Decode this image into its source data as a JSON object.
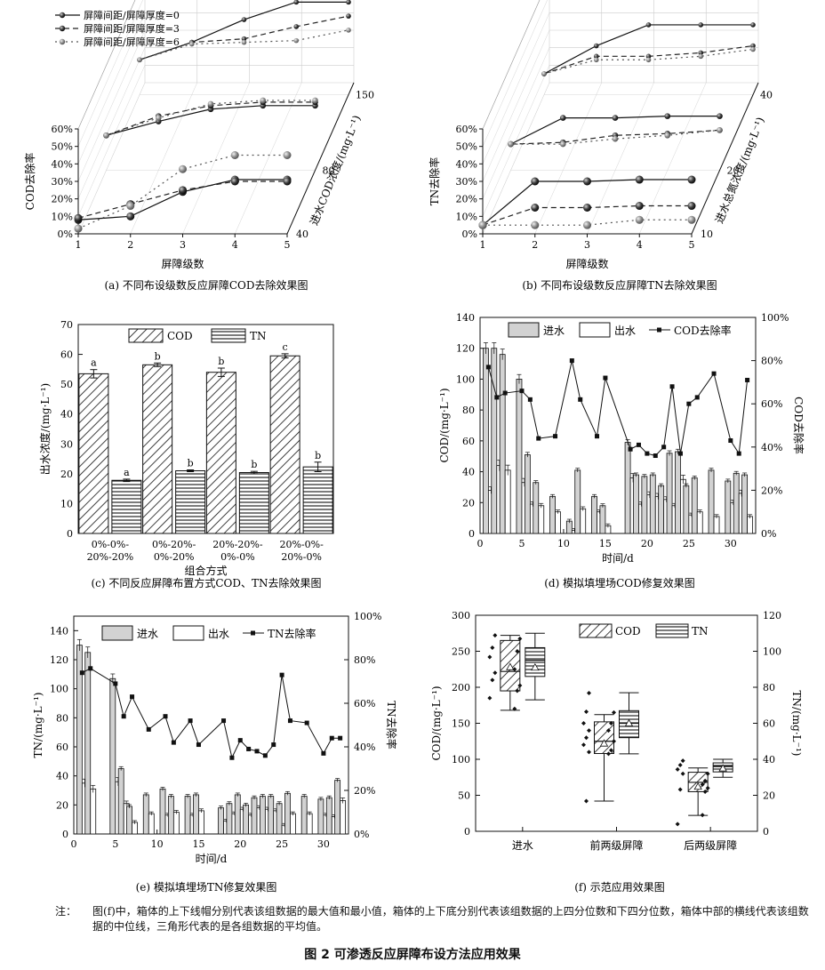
{
  "figure_title": "图 2   可渗透反应屏障布设方法应用效果",
  "note_label": "注：",
  "note_text": "图(f)中，箱体的上下线帽分别代表该组数据的最大值和最小值，箱体的上下底分别代表该组数据的上四分位数和下四分位数，箱体中部的横线代表该组数据的中位线，三角形代表的是各组数据的平均值。",
  "colors": {
    "influent": "#d2d2d2",
    "effluent": "#ffffff",
    "line": "#111111",
    "dash": "#222222",
    "dot": "#666666"
  },
  "chart_data": [
    {
      "id": "a",
      "type": "line3d",
      "caption": "(a) 不同布设级数反应屏障COD去除效果图",
      "xlabel": "屏障级数",
      "ylabel": "COD去除率",
      "zlabel": "进水COD浓度/(mg·L⁻¹)",
      "x": [
        1,
        2,
        3,
        4,
        5
      ],
      "z_ticks": [
        "40",
        "80",
        "150"
      ],
      "y_ticks": [
        "0%",
        "10%",
        "20%",
        "30%",
        "40%",
        "50%",
        "60%"
      ],
      "legend": [
        "屏障间距/屏障厚度=0",
        "屏障间距/屏障厚度=3",
        "屏障间距/屏障厚度=6"
      ],
      "series": [
        {
          "name": "屏障间距/屏障厚度=0",
          "conc": "40",
          "values": [
            8,
            10,
            24,
            31,
            31
          ]
        },
        {
          "name": "屏障间距/屏障厚度=3",
          "conc": "40",
          "values": [
            9,
            17,
            25,
            30,
            30
          ]
        },
        {
          "name": "屏障间距/屏障厚度=6",
          "conc": "40",
          "values": [
            3,
            16,
            37,
            45,
            45
          ]
        },
        {
          "name": "屏障间距/屏障厚度=0",
          "conc": "80",
          "values": [
            20,
            28,
            35,
            37,
            37
          ]
        },
        {
          "name": "屏障间距/屏障厚度=3",
          "conc": "80",
          "values": [
            20,
            31,
            37,
            39,
            39
          ]
        },
        {
          "name": "屏障间距/屏障厚度=6",
          "conc": "80",
          "values": [
            20,
            30,
            38,
            40,
            40
          ]
        },
        {
          "name": "屏障间距/屏障厚度=0",
          "conc": "150",
          "values": [
            20,
            30,
            43,
            53,
            53
          ]
        },
        {
          "name": "屏障间距/屏障厚度=3",
          "conc": "150",
          "values": [
            20,
            30,
            32,
            39,
            45
          ]
        },
        {
          "name": "屏障间距/屏障厚度=6",
          "conc": "150",
          "values": [
            20,
            29,
            30,
            31,
            37
          ]
        }
      ]
    },
    {
      "id": "b",
      "type": "line3d",
      "caption": "(b) 不同布设级数反应屏障TN去除效果图",
      "xlabel": "屏障级数",
      "ylabel": "TN去除率",
      "zlabel": "进水总氮浓度/(mg·L⁻¹)",
      "x": [
        1,
        2,
        3,
        4,
        5
      ],
      "z_ticks": [
        "10",
        "20",
        "40"
      ],
      "y_ticks": [
        "0%",
        "10%",
        "20%",
        "30%",
        "40%",
        "50%",
        "60%"
      ],
      "series": [
        {
          "name": "屏障间距/屏障厚度=0",
          "conc": "10",
          "values": [
            5,
            30,
            30,
            31,
            31
          ]
        },
        {
          "name": "屏障间距/屏障厚度=3",
          "conc": "10",
          "values": [
            5,
            15,
            15,
            16,
            16
          ]
        },
        {
          "name": "屏障间距/屏障厚度=6",
          "conc": "10",
          "values": [
            5,
            5,
            5,
            8,
            8
          ]
        },
        {
          "name": "屏障间距/屏障厚度=0",
          "conc": "20",
          "values": [
            15,
            30,
            30,
            31,
            31
          ]
        },
        {
          "name": "屏障间距/屏障厚度=3",
          "conc": "20",
          "values": [
            15,
            16,
            20,
            21,
            23
          ]
        },
        {
          "name": "屏障间距/屏障厚度=6",
          "conc": "20",
          "values": [
            15,
            15,
            18,
            20,
            23
          ]
        },
        {
          "name": "屏障间距/屏障厚度=0",
          "conc": "40",
          "values": [
            12,
            28,
            40,
            40,
            40
          ]
        },
        {
          "name": "屏障间距/屏障厚度=3",
          "conc": "40",
          "values": [
            12,
            22,
            22,
            24,
            28
          ]
        },
        {
          "name": "屏障间距/屏障厚度=6",
          "conc": "40",
          "values": [
            12,
            20,
            20,
            22,
            26
          ]
        }
      ]
    },
    {
      "id": "c",
      "type": "bar",
      "caption": "(c) 不同反应屏障布置方式COD、TN去除效果图",
      "xlabel": "组合方式",
      "ylabel": "出水浓度/(mg·L⁻¹)",
      "ylim": [
        0,
        70
      ],
      "y_ticks": [
        "0",
        "10",
        "20",
        "30",
        "40",
        "50",
        "60",
        "70"
      ],
      "categories": [
        [
          "0%-0%-",
          "20%-20%"
        ],
        [
          "0%-20%-",
          "0%-20%"
        ],
        [
          "20%-20%-",
          "0%-0%"
        ],
        [
          "20%-0%-",
          "20%-0%"
        ]
      ],
      "legend": [
        "COD",
        "TN"
      ],
      "series": [
        {
          "name": "COD",
          "values": [
            53.5,
            56.5,
            54,
            59.5
          ],
          "err": [
            1.4,
            0.6,
            1.4,
            0.7
          ],
          "letters": [
            "a",
            "b",
            "b",
            "c"
          ]
        },
        {
          "name": "TN",
          "values": [
            17.8,
            21,
            20.4,
            22.3
          ],
          "err": [
            0.4,
            0.3,
            0.4,
            1.6
          ],
          "letters": [
            "a",
            "b",
            "b",
            "b"
          ]
        }
      ]
    },
    {
      "id": "d",
      "type": "bar_line",
      "caption": "(d) 模拟填埋场COD修复效果图",
      "xlabel": "时间/d",
      "ylabel": "COD/(mg·L⁻¹)",
      "y2label": "COD去除率",
      "ylim": [
        0,
        140
      ],
      "y2lim": [
        0,
        100
      ],
      "y_ticks": [
        "0",
        "20",
        "40",
        "60",
        "80",
        "100",
        "120",
        "140"
      ],
      "y2_ticks": [
        "0%",
        "20%",
        "40%",
        "60%",
        "80%",
        "100%"
      ],
      "x_ticks": [
        "0",
        "5",
        "10",
        "15",
        "20",
        "25",
        "30"
      ],
      "legend": [
        "进水",
        "出水",
        "COD去除率"
      ],
      "days": [
        1,
        2,
        3,
        5,
        6,
        7,
        9,
        11,
        12,
        14,
        15,
        18,
        19,
        20,
        21,
        22,
        23,
        24,
        25,
        26,
        28,
        30,
        31,
        32
      ],
      "influent": [
        120,
        120,
        116,
        100,
        51,
        33,
        24,
        8,
        41,
        24,
        18,
        59,
        38,
        37,
        38,
        31,
        52,
        53,
        31,
        36,
        41,
        34,
        39,
        38
      ],
      "effluent": [
        28,
        44,
        41,
        33,
        19,
        18,
        14,
        2,
        16,
        14,
        5,
        36,
        19,
        25,
        24,
        22,
        18,
        35,
        12,
        14,
        11,
        20,
        26,
        11
      ],
      "rate": [
        77,
        63,
        65,
        66,
        62,
        44,
        45,
        80,
        62,
        45,
        72,
        39,
        41,
        37,
        36,
        40,
        68,
        37,
        60,
        63,
        74,
        43,
        37,
        71
      ]
    },
    {
      "id": "e",
      "type": "bar_line",
      "caption": "(e) 模拟填埋场TN修复效果图",
      "xlabel": "时间/d",
      "ylabel": "TN/(mg·L⁻¹)",
      "y2label": "TN去除率",
      "ylim": [
        0,
        150
      ],
      "y2lim": [
        0,
        100
      ],
      "y_ticks": [
        "0",
        "20",
        "40",
        "60",
        "80",
        "100",
        "120",
        "140"
      ],
      "y2_ticks": [
        "0%",
        "20%",
        "40%",
        "60%",
        "80%",
        "100%"
      ],
      "x_ticks": [
        "0",
        "5",
        "10",
        "15",
        "20",
        "25",
        "30"
      ],
      "legend": [
        "进水",
        "出水",
        "TN去除率"
      ],
      "days": [
        1,
        2,
        5,
        6,
        7,
        9,
        11,
        12,
        14,
        15,
        18,
        19,
        20,
        21,
        22,
        23,
        24,
        25,
        26,
        28,
        30,
        31,
        32
      ],
      "influent": [
        130,
        125,
        107,
        45,
        19,
        27,
        31,
        26,
        26,
        27,
        18,
        21,
        27,
        20,
        25,
        26,
        26,
        21,
        28,
        26,
        24,
        25,
        37
      ],
      "effluent": [
        35,
        31,
        36,
        21,
        8,
        14,
        13,
        15,
        13,
        16,
        9,
        14,
        17,
        13,
        18,
        17,
        16,
        6,
        14,
        14,
        13,
        12,
        23
      ],
      "rate": [
        74,
        76,
        69,
        54,
        63,
        48,
        54,
        42,
        52,
        41,
        52,
        35,
        43,
        39,
        38,
        36,
        41,
        73,
        52,
        51,
        37,
        44,
        44
      ]
    },
    {
      "id": "f",
      "type": "box",
      "caption": "(f) 示范应用效果图",
      "ylabel": "COD/(mg·L⁻¹)",
      "y2label": "TN/(mg·L⁻¹)",
      "ylim": [
        0,
        300
      ],
      "y2lim": [
        0,
        120
      ],
      "y_ticks": [
        "0",
        "50",
        "100",
        "150",
        "200",
        "250",
        "300"
      ],
      "y2_ticks": [
        "0",
        "20",
        "40",
        "60",
        "80",
        "100",
        "120"
      ],
      "categories": [
        "进水",
        "前两级屏障",
        "后两级屏障"
      ],
      "legend": [
        "COD",
        "TN"
      ],
      "COD": [
        {
          "min": 168,
          "q1": 195,
          "median": 222,
          "q3": 265,
          "max": 272,
          "mean": 228,
          "points": [
            272,
            255,
            242,
            220,
            210,
            185
          ]
        },
        {
          "min": 42,
          "q1": 108,
          "median": 125,
          "q3": 152,
          "max": 162,
          "mean": 122,
          "points": [
            192,
            166,
            150,
            140,
            130,
            120,
            110,
            42
          ]
        },
        {
          "min": 22,
          "q1": 55,
          "median": 68,
          "q3": 82,
          "max": 88,
          "mean": 62,
          "points": [
            98,
            92,
            86,
            80,
            58,
            10
          ]
        }
      ],
      "TN": [
        {
          "min": 73,
          "q1": 86,
          "median": 95,
          "q3": 102,
          "max": 110,
          "mean": 91,
          "points": [
            107,
            100,
            90,
            81,
            78,
            68
          ]
        },
        {
          "min": 43,
          "q1": 52,
          "median": 60,
          "q3": 67,
          "max": 77,
          "mean": 60,
          "points": [
            66,
            60,
            56,
            50,
            45,
            43
          ]
        },
        {
          "min": 30,
          "q1": 33,
          "median": 36,
          "q3": 38,
          "max": 40,
          "mean": 35,
          "points": [
            32,
            28,
            26,
            24,
            22,
            9
          ]
        }
      ]
    }
  ]
}
